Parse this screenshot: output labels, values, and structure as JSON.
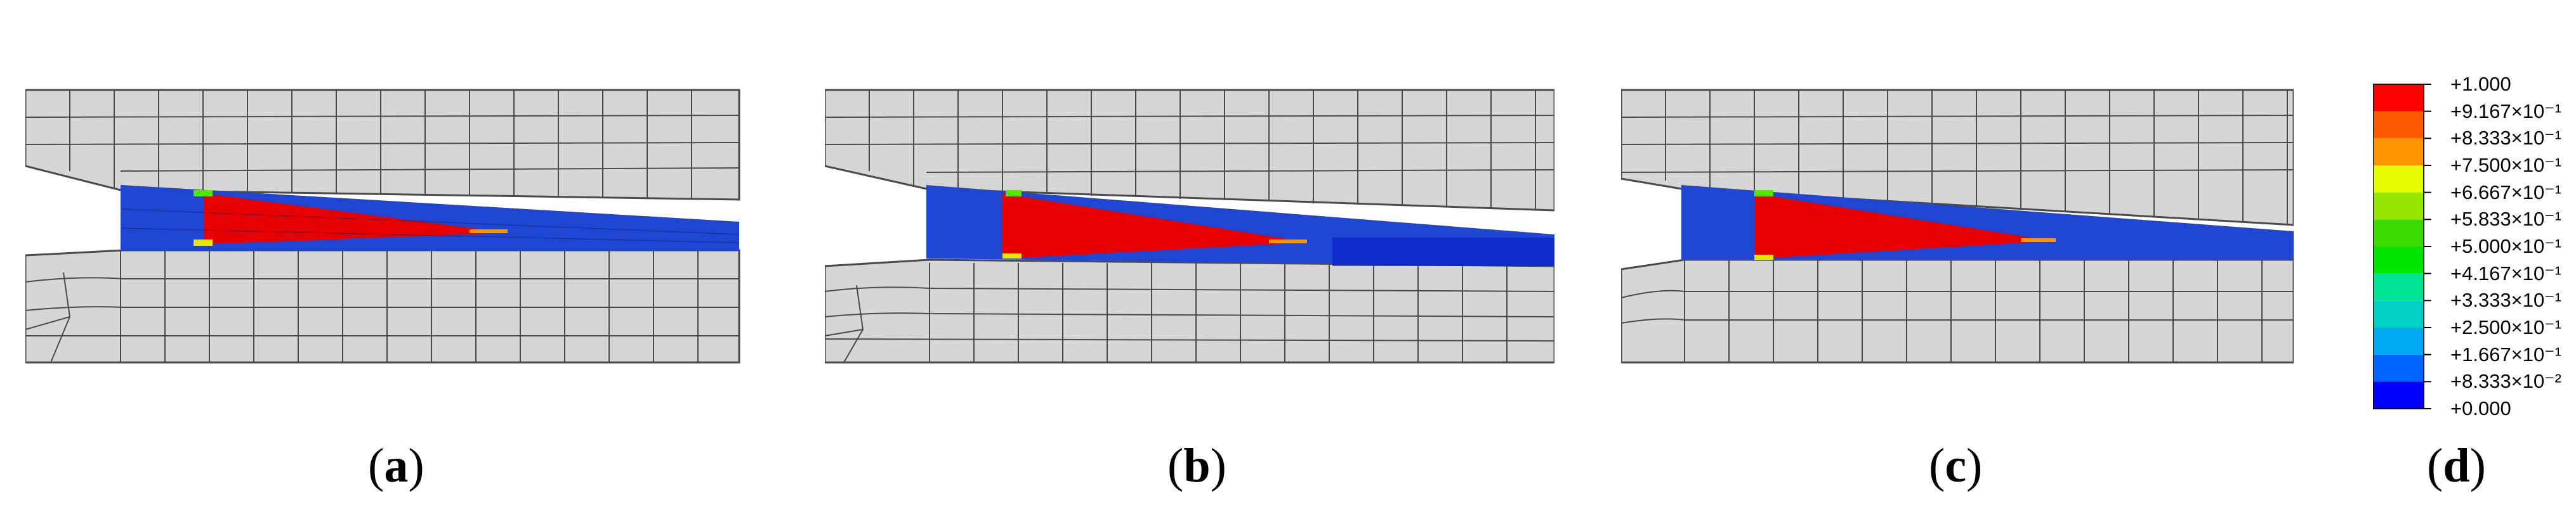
{
  "captions": [
    {
      "letter": "a"
    },
    {
      "letter": "b"
    },
    {
      "letter": "c"
    },
    {
      "letter": "d"
    }
  ],
  "legend": {
    "labels": [
      "+1.000",
      "+9.167×10⁻¹",
      "+8.333×10⁻¹",
      "+7.500×10⁻¹",
      "+6.667×10⁻¹",
      "+5.833×10⁻¹",
      "+5.000×10⁻¹",
      "+4.167×10⁻¹",
      "+3.333×10⁻¹",
      "+2.500×10⁻¹",
      "+1.667×10⁻¹",
      "+8.333×10⁻²",
      "+0.000"
    ],
    "colors": [
      "#ff0000",
      "#ff5a00",
      "#ff9600",
      "#e6ff00",
      "#96e600",
      "#3cdc00",
      "#00e600",
      "#00e696",
      "#00d2c8",
      "#00aaf0",
      "#0064ff",
      "#0000ff"
    ]
  },
  "colors": {
    "mesh_fill": "#d6d6d6",
    "mesh_line": "#4a4a4a",
    "cohesive_blue": "#1e46d2",
    "damaged_red": "#e60000",
    "edge_green": "#50e600",
    "edge_yellow": "#e6e600"
  }
}
